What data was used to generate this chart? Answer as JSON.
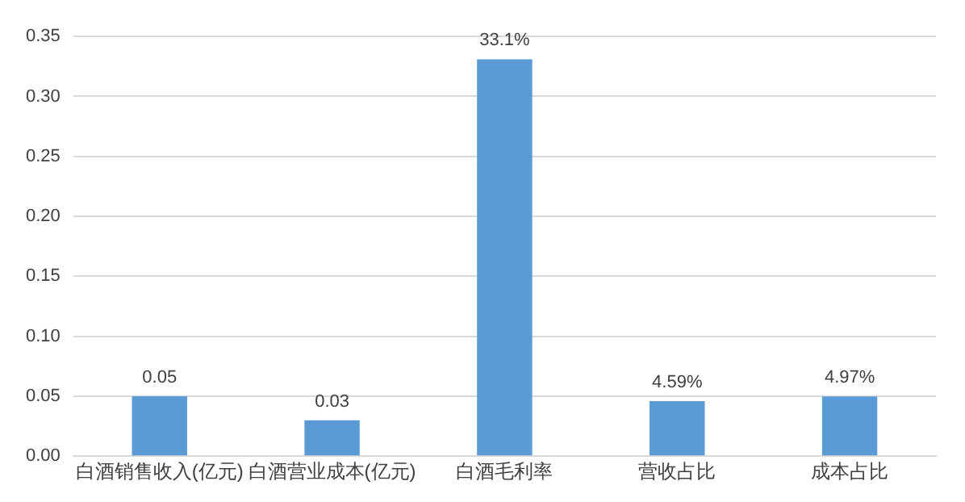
{
  "chart_data": {
    "type": "bar",
    "categories": [
      "白酒销售收入(亿元)",
      "白酒营业成本(亿元)",
      "白酒毛利率",
      "营收占比",
      "成本占比"
    ],
    "values": [
      0.05,
      0.03,
      0.331,
      0.0459,
      0.0497
    ],
    "value_labels": [
      "0.05",
      "0.03",
      "33.1%",
      "4.59%",
      "4.97%"
    ],
    "color": "#5b9bd5",
    "ylim": [
      0,
      0.35
    ],
    "yticks": [
      {
        "value": 0,
        "label": "0.00"
      },
      {
        "value": 0.05,
        "label": "0.05"
      },
      {
        "value": 0.1,
        "label": "0.10"
      },
      {
        "value": 0.15,
        "label": "0.15"
      },
      {
        "value": 0.2,
        "label": "0.20"
      },
      {
        "value": 0.25,
        "label": "0.25"
      },
      {
        "value": 0.3,
        "label": "0.30"
      },
      {
        "value": 0.35,
        "label": "0.35"
      }
    ],
    "grid": "y"
  }
}
